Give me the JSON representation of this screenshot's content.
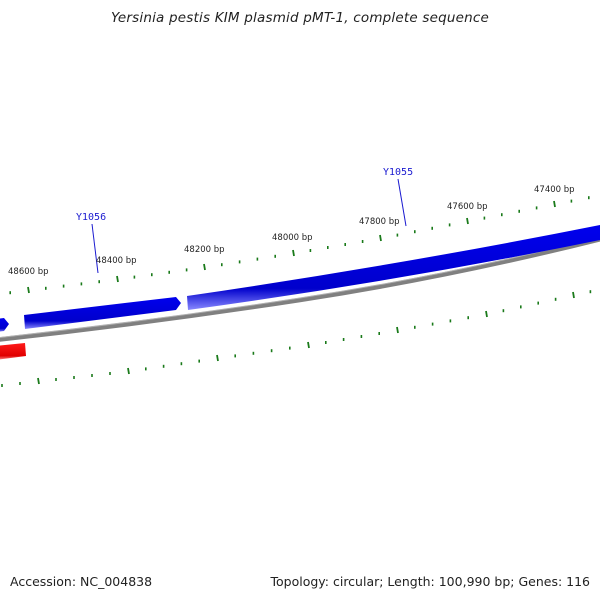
{
  "title": "Yersinia pestis KIM plasmid pMT-1, complete sequence",
  "footer": {
    "accession": "Accession: NC_004838",
    "summary": "Topology: circular; Length: 100,990 bp; Genes: 116"
  },
  "ticks": [
    {
      "label": "48600 bp"
    },
    {
      "label": "48400 bp"
    },
    {
      "label": "48200 bp"
    },
    {
      "label": "48000 bp"
    },
    {
      "label": "47800 bp"
    },
    {
      "label": "47600 bp"
    },
    {
      "label": "47400 bp"
    }
  ],
  "genes": [
    {
      "label": "Y1056"
    },
    {
      "label": "Y1055"
    }
  ],
  "colors": {
    "forward_gene": "#0000ee",
    "reverse_gene": "#ee0000",
    "backbone": "#808080",
    "tick": "#1a7a1a",
    "gene_label": "#1a1ad0"
  }
}
